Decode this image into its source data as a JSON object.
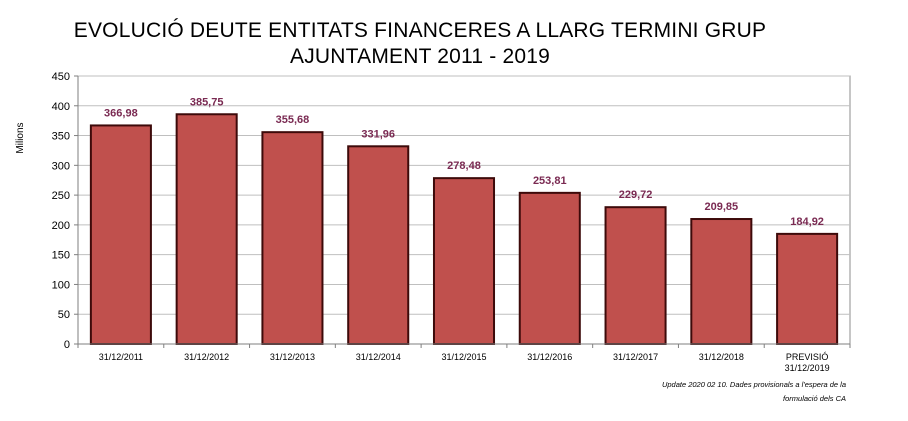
{
  "chart_data": {
    "type": "bar",
    "title_line1": "EVOLUCIÓ DEUTE ENTITATS FINANCERES A LLARG TERMINI GRUP",
    "title_line2": "AJUNTAMENT 2011 - 2019",
    "ylabel": "Milions",
    "xlabel": "",
    "ylim": [
      0,
      450
    ],
    "yticks": [
      0,
      50,
      100,
      150,
      200,
      250,
      300,
      350,
      400,
      450
    ],
    "categories": [
      [
        "31/12/2011"
      ],
      [
        "31/12/2012"
      ],
      [
        "31/12/2013"
      ],
      [
        "31/12/2014"
      ],
      [
        "31/12/2015"
      ],
      [
        "31/12/2016"
      ],
      [
        "31/12/2017"
      ],
      [
        "31/12/2018"
      ],
      [
        "PREVISIÓ",
        "31/12/2019"
      ]
    ],
    "values": [
      366.98,
      385.75,
      355.68,
      331.96,
      278.48,
      253.81,
      229.72,
      209.85,
      184.92
    ],
    "value_labels": [
      "366,98",
      "385,75",
      "355,68",
      "331,96",
      "278,48",
      "253,81",
      "229,72",
      "209,85",
      "184,92"
    ],
    "grid": true,
    "legend": "none",
    "colors": {
      "bar_fill": "#c0504d",
      "bar_stroke": "#3d0a0a",
      "value_label": "#7a2a52",
      "grid": "#bfbfbf",
      "plot_bg": "#ffffff"
    }
  },
  "footnote": {
    "line1": "Update 2020 02 10. Dades provisionals a l'espera de la",
    "line2": "formulació dels CA"
  }
}
